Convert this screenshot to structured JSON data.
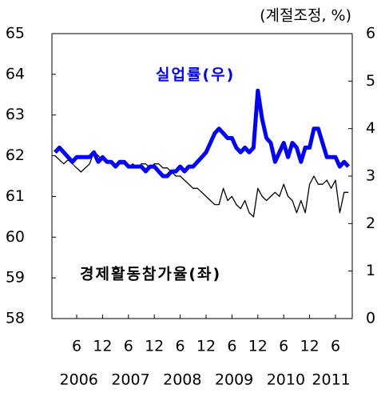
{
  "chart_data": {
    "type": "line",
    "unit_note": "(계절조정, %)",
    "x": [
      "2006-01",
      "2006-02",
      "2006-03",
      "2006-04",
      "2006-05",
      "2006-06",
      "2006-07",
      "2006-08",
      "2006-09",
      "2006-10",
      "2006-11",
      "2006-12",
      "2007-01",
      "2007-02",
      "2007-03",
      "2007-04",
      "2007-05",
      "2007-06",
      "2007-07",
      "2007-08",
      "2007-09",
      "2007-10",
      "2007-11",
      "2007-12",
      "2008-01",
      "2008-02",
      "2008-03",
      "2008-04",
      "2008-05",
      "2008-06",
      "2008-07",
      "2008-08",
      "2008-09",
      "2008-10",
      "2008-11",
      "2008-12",
      "2009-01",
      "2009-02",
      "2009-03",
      "2009-04",
      "2009-05",
      "2009-06",
      "2009-07",
      "2009-08",
      "2009-09",
      "2009-10",
      "2009-11",
      "2009-12",
      "2010-01",
      "2010-02",
      "2010-03",
      "2010-04",
      "2010-05",
      "2010-06",
      "2010-07",
      "2010-08",
      "2010-09",
      "2010-10",
      "2010-11",
      "2010-12",
      "2011-01",
      "2011-02",
      "2011-03",
      "2011-04",
      "2011-05",
      "2011-06",
      "2011-07",
      "2011-08",
      "2011-09"
    ],
    "xticks": [
      {
        "value": "2006-06",
        "label": "6"
      },
      {
        "value": "2006-12",
        "label": "12"
      },
      {
        "value": "2007-06",
        "label": "6"
      },
      {
        "value": "2007-12",
        "label": "12"
      },
      {
        "value": "2008-06",
        "label": "6"
      },
      {
        "value": "2008-12",
        "label": "12"
      },
      {
        "value": "2009-06",
        "label": "6"
      },
      {
        "value": "2009-12",
        "label": "12"
      },
      {
        "value": "2010-06",
        "label": "6"
      },
      {
        "value": "2010-12",
        "label": "12"
      },
      {
        "value": "2011-06",
        "label": "6"
      }
    ],
    "years": [
      "2006",
      "2007",
      "2008",
      "2009",
      "2010",
      "2011"
    ],
    "ylim": [
      58,
      65
    ],
    "yticks": [
      58,
      59,
      60,
      61,
      62,
      63,
      64,
      65
    ],
    "y2lim": [
      0,
      6
    ],
    "y2ticks": [
      0,
      1,
      2,
      3,
      4,
      5,
      6
    ],
    "series": [
      {
        "name": "경제활동참가율(좌)",
        "color": "#000000",
        "axis": "y",
        "values": [
          62.0,
          61.9,
          61.8,
          61.9,
          61.8,
          61.7,
          61.6,
          61.7,
          61.8,
          62.1,
          62.0,
          61.9,
          61.9,
          61.8,
          61.8,
          61.8,
          61.8,
          61.7,
          61.8,
          61.7,
          61.8,
          61.8,
          61.7,
          61.8,
          61.8,
          61.7,
          61.7,
          61.6,
          61.5,
          61.5,
          61.4,
          61.3,
          61.2,
          61.2,
          61.1,
          61.0,
          60.9,
          60.8,
          60.8,
          61.2,
          60.9,
          61.0,
          60.8,
          60.7,
          60.9,
          60.6,
          60.5,
          61.2,
          61.0,
          60.9,
          61.0,
          61.1,
          61.0,
          61.3,
          61.0,
          60.9,
          60.6,
          60.9,
          60.6,
          61.3,
          61.5,
          61.3,
          61.3,
          61.4,
          61.2,
          61.4,
          60.6,
          61.1,
          61.1
        ]
      },
      {
        "name": "실업률(우)",
        "color": "#0000ff",
        "axis": "y2",
        "values": [
          3.5,
          3.6,
          3.5,
          3.4,
          3.3,
          3.4,
          3.4,
          3.4,
          3.4,
          3.5,
          3.3,
          3.4,
          3.3,
          3.3,
          3.2,
          3.3,
          3.3,
          3.2,
          3.2,
          3.2,
          3.2,
          3.1,
          3.2,
          3.2,
          3.1,
          3.0,
          3.0,
          3.1,
          3.1,
          3.2,
          3.1,
          3.2,
          3.2,
          3.3,
          3.4,
          3.5,
          3.7,
          3.9,
          4.0,
          3.9,
          3.8,
          3.8,
          3.6,
          3.5,
          3.6,
          3.5,
          3.6,
          4.8,
          4.2,
          3.8,
          3.7,
          3.3,
          3.5,
          3.7,
          3.4,
          3.7,
          3.6,
          3.3,
          3.6,
          3.6,
          4.0,
          4.0,
          3.7,
          3.4,
          3.4,
          3.4,
          3.2,
          3.3,
          3.2
        ]
      }
    ]
  }
}
